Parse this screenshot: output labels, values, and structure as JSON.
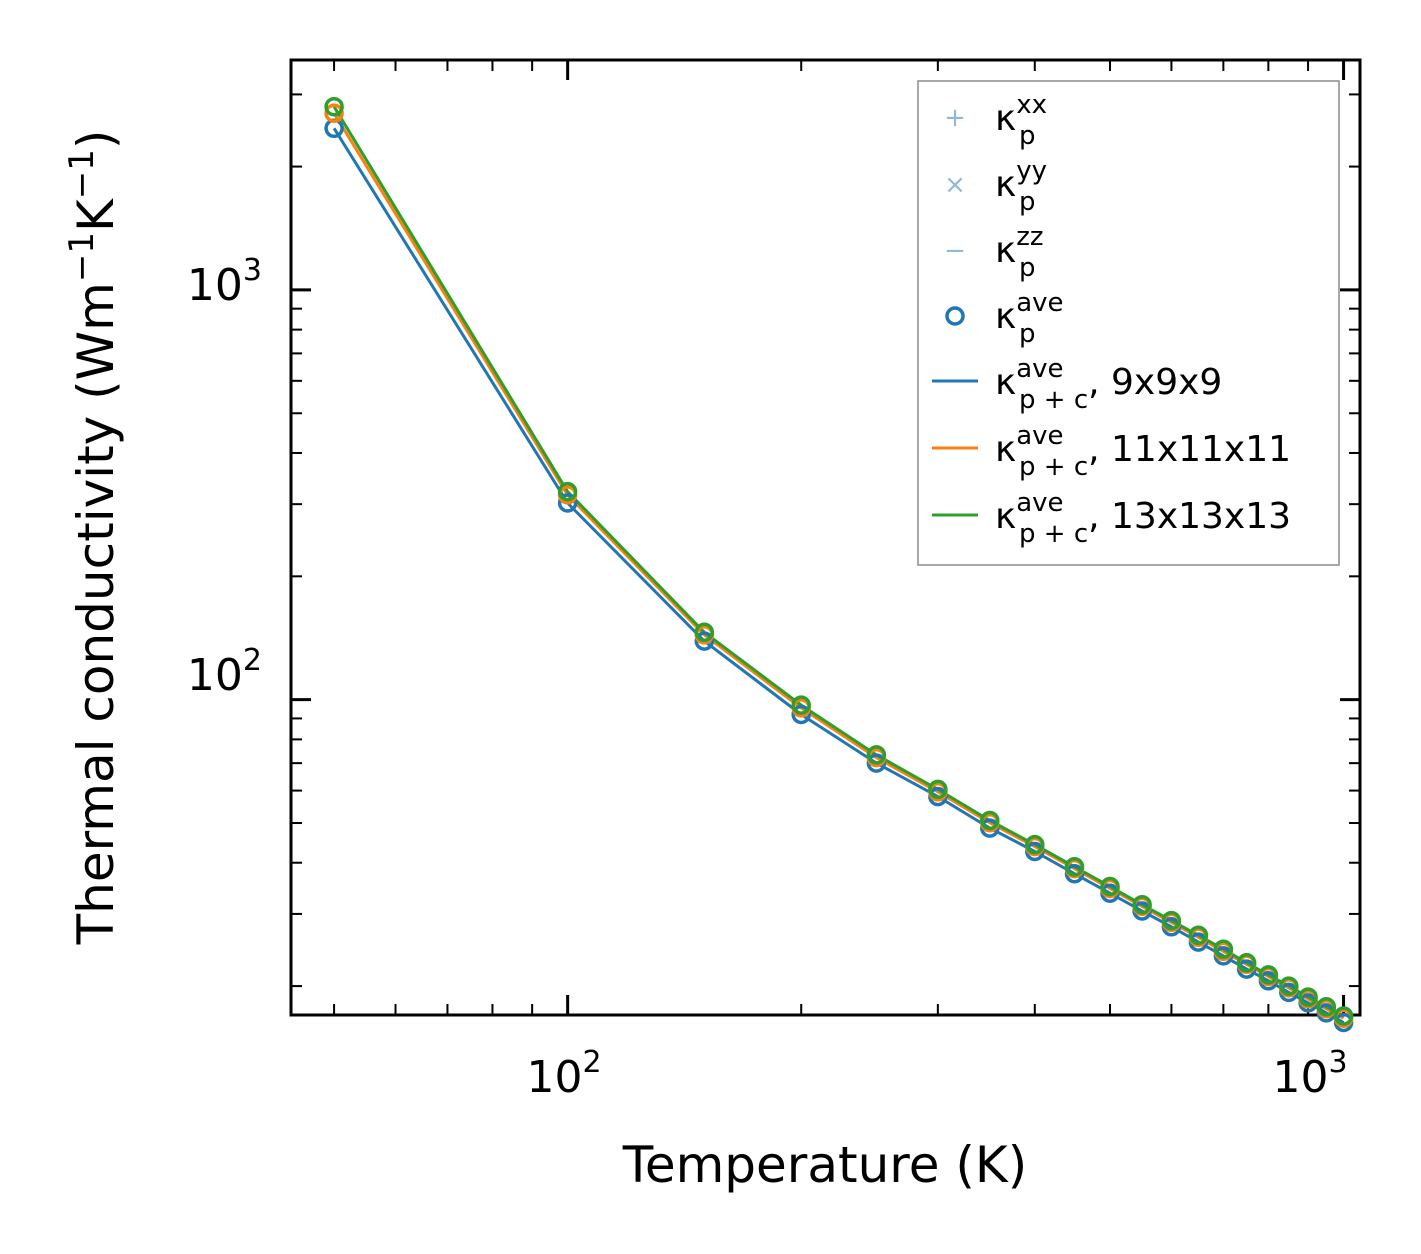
{
  "chart_data": {
    "type": "line",
    "xscale": "log",
    "yscale": "log",
    "xlabel": "Temperature (K)",
    "ylabel": {
      "prefix": "Thermal conductivity (Wm",
      "sup1": "−1",
      "mid": "K",
      "sup2": "−1",
      "suffix": ")"
    },
    "xlim": [
      44,
      1050
    ],
    "ylim": [
      17,
      3640
    ],
    "xticks": [
      {
        "base": "10",
        "exp": "2",
        "value": 100
      },
      {
        "base": "10",
        "exp": "3",
        "value": 1000
      }
    ],
    "yticks": [
      {
        "base": "10",
        "exp": "2",
        "value": 100
      },
      {
        "base": "10",
        "exp": "3",
        "value": 1000
      }
    ],
    "x": [
      50,
      100,
      150,
      200,
      250,
      300,
      350,
      400,
      450,
      500,
      550,
      600,
      650,
      700,
      750,
      800,
      850,
      900,
      950,
      1000
    ],
    "series": [
      {
        "name": "9x9x9",
        "label": {
          "k": "κ",
          "sup": "ave",
          "sub": "p + c",
          "suffix": ", 9x9x9"
        },
        "color": "#1f77b4",
        "values": [
          2480,
          302,
          139,
          92,
          70,
          58,
          48.6,
          42.6,
          37.6,
          33.7,
          30.5,
          27.9,
          25.6,
          23.7,
          22.0,
          20.6,
          19.3,
          18.2,
          17.2,
          16.3
        ]
      },
      {
        "name": "11x11x11",
        "label": {
          "k": "κ",
          "sup": "ave",
          "sub": "p + c",
          "suffix": ", 11x11x11"
        },
        "color": "#ff7f0e",
        "values": [
          2700,
          316,
          144,
          95.5,
          72.2,
          59.6,
          50.1,
          43.8,
          38.7,
          34.6,
          31.3,
          28.6,
          26.3,
          24.3,
          22.6,
          21.1,
          19.8,
          18.6,
          17.6,
          16.7
        ]
      },
      {
        "name": "13x13x13",
        "label": {
          "k": "κ",
          "sup": "ave",
          "sub": "p + c",
          "suffix": ", 13x13x13"
        },
        "color": "#2ca02c",
        "values": [
          2800,
          322,
          146,
          97,
          73.3,
          60.4,
          50.7,
          44.3,
          39.1,
          35.0,
          31.6,
          28.9,
          26.6,
          24.6,
          22.8,
          21.3,
          20.0,
          18.8,
          17.8,
          16.9
        ]
      }
    ],
    "markers": {
      "kxx": {
        "label": {
          "k": "κ",
          "sup": "xx",
          "sub": "p"
        },
        "symbol": "+",
        "color": "#8fb8d9"
      },
      "kyy": {
        "label": {
          "k": "κ",
          "sup": "yy",
          "sub": "p"
        },
        "symbol": "×",
        "color": "#8fb8d9"
      },
      "kzz": {
        "label": {
          "k": "κ",
          "sup": "zz",
          "sub": "p"
        },
        "symbol": "−",
        "color": "#8fb8d9"
      },
      "kave": {
        "label": {
          "k": "κ",
          "sup": "ave",
          "sub": "p"
        },
        "symbol": "o",
        "color": "#1f77b4"
      }
    },
    "legend_position": "top-right",
    "grid": false
  }
}
